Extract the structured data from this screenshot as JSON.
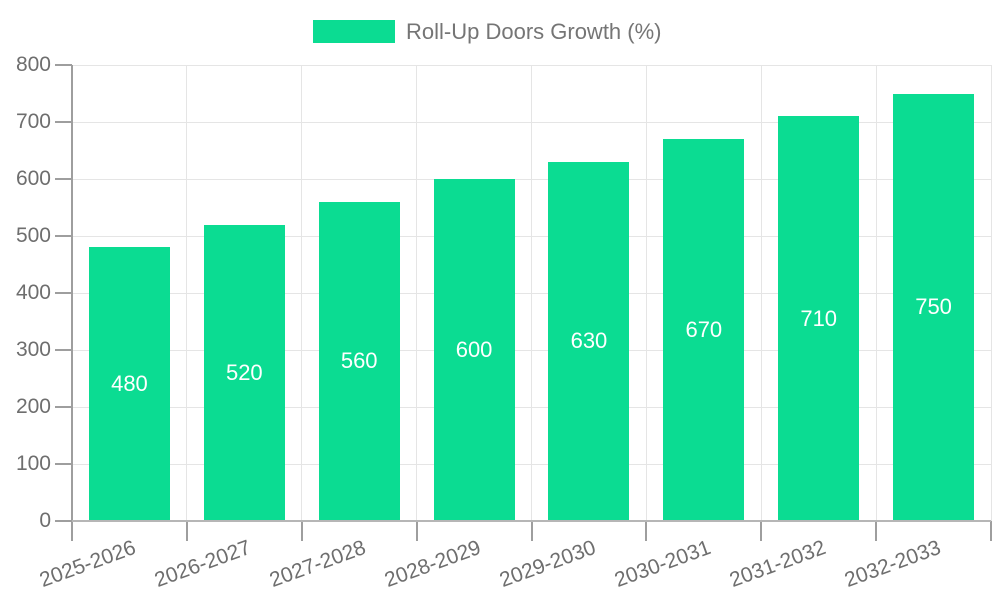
{
  "chart_data": {
    "type": "bar",
    "title": "",
    "legend": [
      "Roll-Up Doors Growth (%)"
    ],
    "legend_position": "top",
    "categories": [
      "2025-2026",
      "2026-2027",
      "2027-2028",
      "2028-2029",
      "2029-2030",
      "2030-2031",
      "2031-2032",
      "2032-2033"
    ],
    "series": [
      {
        "name": "Roll-Up Doors Growth (%)",
        "values": [
          480,
          520,
          560,
          600,
          630,
          670,
          710,
          750
        ]
      }
    ],
    "value_labels": [
      "480",
      "520",
      "560",
      "600",
      "630",
      "670",
      "710",
      "750"
    ],
    "xlabel": "",
    "ylabel": "",
    "ylim": [
      0,
      800
    ],
    "ytick_step": 100,
    "ytick_labels": [
      "0",
      "100",
      "200",
      "300",
      "400",
      "500",
      "600",
      "700",
      "800"
    ],
    "grid": true,
    "x_label_rotation_deg": -20
  },
  "colors": {
    "bar": "#0bdc92",
    "legend_text": "#757575",
    "axis_text": "#6e6e6e",
    "grid_line": "#e5e5e5",
    "axis_line": "#9e9e9e",
    "baseline": "#b6b6b6",
    "value_label": "#ffffff",
    "background": "#ffffff"
  }
}
